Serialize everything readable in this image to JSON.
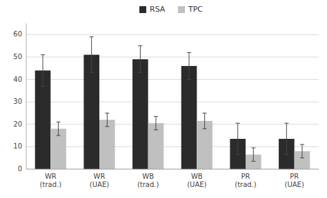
{
  "chart_data": {
    "type": "bar",
    "categories": [
      "WR\n(trad.)",
      "WR\n(UAE)",
      "WB\n(trad.)",
      "WB\n(UAE)",
      "PR\n(trad.)",
      "PR\n(UAE)"
    ],
    "series": [
      {
        "name": "RSA",
        "color": "#2b2b2b",
        "values": [
          44,
          51,
          49,
          46,
          13.5,
          13.5
        ],
        "errors": [
          7,
          8,
          6,
          6,
          7,
          7
        ]
      },
      {
        "name": "TPC",
        "color": "#c0c0c0",
        "values": [
          18,
          22,
          20.5,
          21.5,
          6.5,
          8
        ],
        "errors": [
          3,
          3,
          3,
          3.5,
          3,
          3
        ]
      }
    ],
    "ylim": [
      0,
      65
    ],
    "yticks": [
      0,
      10,
      20,
      30,
      40,
      50,
      60
    ],
    "grid": true,
    "legend": "top"
  }
}
